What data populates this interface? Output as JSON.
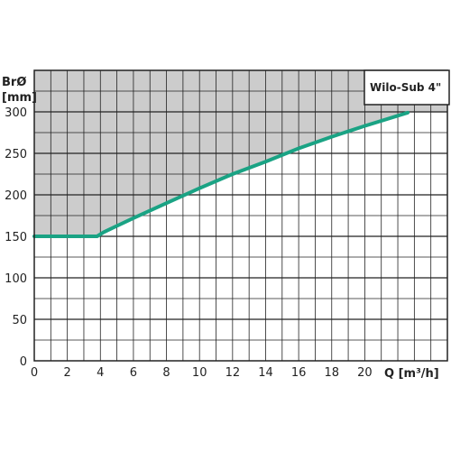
{
  "chart_data": {
    "type": "area",
    "title": "Wilo-Sub 4\"",
    "ylabel_line1": "BrØ",
    "ylabel_line2": "[mm]",
    "xlabel": "Q [m³/h]",
    "xlim": [
      0,
      25
    ],
    "ylim": [
      0,
      350
    ],
    "x_ticks": [
      0,
      2,
      4,
      6,
      8,
      10,
      12,
      14,
      16,
      18,
      20
    ],
    "y_ticks": [
      0,
      50,
      100,
      150,
      200,
      250,
      300
    ],
    "grid": true,
    "series": [
      {
        "x": [
          0,
          3.8,
          4.2,
          6,
          8,
          10,
          12,
          14,
          16,
          18,
          20,
          22.6
        ],
        "y": [
          150,
          150,
          155,
          172,
          190,
          208,
          225,
          240,
          256,
          270,
          283,
          299
        ]
      }
    ],
    "colors": {
      "line": "#1aa384",
      "shaded": "#cccccc",
      "grid": "#222222"
    }
  }
}
